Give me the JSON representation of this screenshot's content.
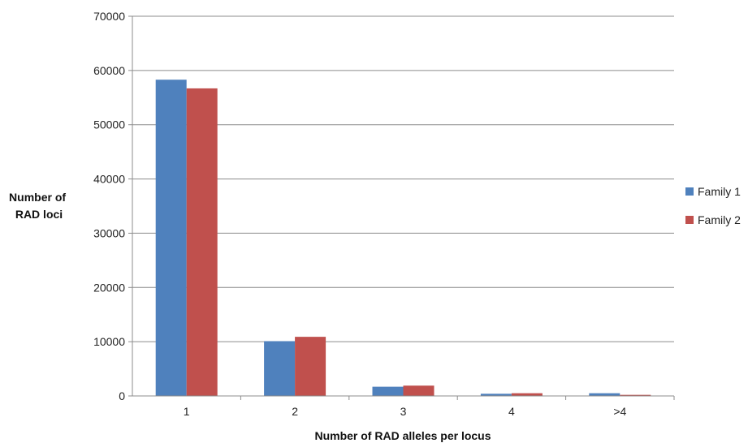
{
  "chart_data": {
    "type": "bar",
    "categories": [
      "1",
      "2",
      "3",
      "4",
      ">4"
    ],
    "series": [
      {
        "name": "Family 1",
        "color": "#4F81BD",
        "values": [
          58300,
          10100,
          1700,
          400,
          500
        ]
      },
      {
        "name": "Family 2",
        "color": "#C0504D",
        "values": [
          56700,
          10900,
          1900,
          500,
          200
        ]
      }
    ],
    "xlabel": "Number of RAD alleles per locus",
    "ylabel_lines": [
      "Number of",
      "RAD loci"
    ],
    "ylim": [
      0,
      70000
    ],
    "yticks": [
      0,
      10000,
      20000,
      30000,
      40000,
      50000,
      60000,
      70000
    ],
    "grid": true,
    "legend_position": "right"
  }
}
